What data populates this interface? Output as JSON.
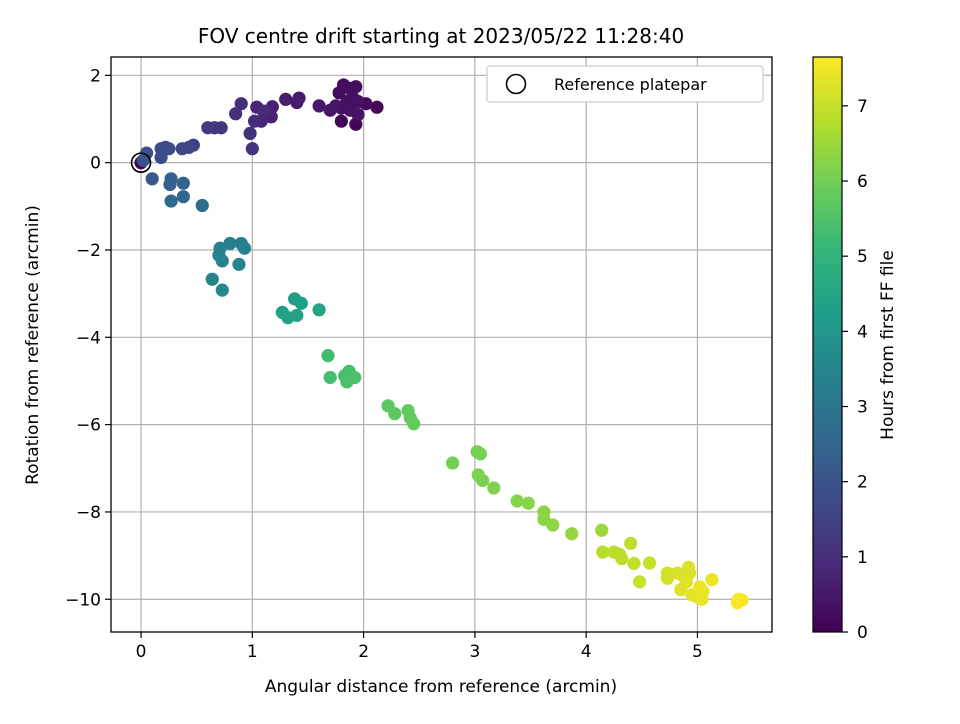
{
  "chart_data": {
    "type": "scatter",
    "title": "FOV centre drift starting at 2023/05/22 11:28:40",
    "xlabel": "Angular distance from reference (arcmin)",
    "ylabel": "Rotation from reference (arcmin)",
    "xlim": [
      -0.27,
      5.67
    ],
    "ylim": [
      -10.75,
      2.42
    ],
    "xticks": [
      0,
      1,
      2,
      3,
      4,
      5
    ],
    "yticks": [
      2,
      0,
      -2,
      -4,
      -6,
      -8,
      -10
    ],
    "grid": true,
    "legend": {
      "placement": "top-right",
      "entries": [
        {
          "label": "Reference platepar",
          "marker": "open-circle"
        }
      ]
    },
    "reference_point": {
      "x": 0,
      "y": 0
    },
    "colorbar": {
      "label": "Hours from first FF file",
      "colormap": "viridis",
      "range": [
        0,
        7.65
      ],
      "ticks": [
        0,
        1,
        2,
        3,
        4,
        5,
        6,
        7
      ]
    },
    "points": [
      {
        "x": 0.0,
        "y": 0.0,
        "c": 0.0
      },
      {
        "x": 1.93,
        "y": 0.88,
        "c": 0.1
      },
      {
        "x": 1.8,
        "y": 0.95,
        "c": 0.1
      },
      {
        "x": 2.12,
        "y": 1.27,
        "c": 0.15
      },
      {
        "x": 2.02,
        "y": 1.35,
        "c": 0.2
      },
      {
        "x": 1.78,
        "y": 1.6,
        "c": 0.2
      },
      {
        "x": 1.82,
        "y": 1.78,
        "c": 0.25
      },
      {
        "x": 1.88,
        "y": 1.7,
        "c": 0.25
      },
      {
        "x": 1.93,
        "y": 1.74,
        "c": 0.3
      },
      {
        "x": 1.9,
        "y": 1.5,
        "c": 0.3
      },
      {
        "x": 1.85,
        "y": 1.4,
        "c": 0.3
      },
      {
        "x": 1.95,
        "y": 1.4,
        "c": 0.35
      },
      {
        "x": 1.8,
        "y": 1.25,
        "c": 0.35
      },
      {
        "x": 1.88,
        "y": 1.2,
        "c": 0.35
      },
      {
        "x": 1.95,
        "y": 1.1,
        "c": 0.4
      },
      {
        "x": 1.75,
        "y": 1.3,
        "c": 0.4
      },
      {
        "x": 1.7,
        "y": 1.2,
        "c": 0.45
      },
      {
        "x": 1.6,
        "y": 1.3,
        "c": 0.5
      },
      {
        "x": 1.4,
        "y": 1.38,
        "c": 0.55
      },
      {
        "x": 1.42,
        "y": 1.48,
        "c": 0.6
      },
      {
        "x": 1.3,
        "y": 1.45,
        "c": 0.6
      },
      {
        "x": 1.18,
        "y": 1.28,
        "c": 0.7
      },
      {
        "x": 1.17,
        "y": 1.05,
        "c": 0.75
      },
      {
        "x": 1.08,
        "y": 0.95,
        "c": 0.8
      },
      {
        "x": 1.04,
        "y": 1.27,
        "c": 0.8
      },
      {
        "x": 1.02,
        "y": 0.95,
        "c": 0.9
      },
      {
        "x": 1.1,
        "y": 1.18,
        "c": 0.9
      },
      {
        "x": 0.9,
        "y": 1.35,
        "c": 1.0
      },
      {
        "x": 0.85,
        "y": 1.12,
        "c": 1.05
      },
      {
        "x": 0.98,
        "y": 0.67,
        "c": 1.1
      },
      {
        "x": 1.0,
        "y": 0.32,
        "c": 1.15
      },
      {
        "x": 0.72,
        "y": 0.8,
        "c": 1.25
      },
      {
        "x": 0.66,
        "y": 0.8,
        "c": 1.3
      },
      {
        "x": 0.6,
        "y": 0.8,
        "c": 1.35
      },
      {
        "x": 0.47,
        "y": 0.4,
        "c": 1.5
      },
      {
        "x": 0.43,
        "y": 0.35,
        "c": 1.6
      },
      {
        "x": 0.37,
        "y": 0.32,
        "c": 1.65
      },
      {
        "x": 0.22,
        "y": 0.35,
        "c": 1.7
      },
      {
        "x": 0.18,
        "y": 0.32,
        "c": 1.75
      },
      {
        "x": 0.25,
        "y": 0.32,
        "c": 1.8
      },
      {
        "x": 0.18,
        "y": 0.12,
        "c": 1.85
      },
      {
        "x": 0.05,
        "y": 0.22,
        "c": 1.9
      },
      {
        "x": 0.02,
        "y": 0.05,
        "c": 1.95
      },
      {
        "x": 0.1,
        "y": -0.37,
        "c": 2.1
      },
      {
        "x": 0.27,
        "y": -0.37,
        "c": 2.3
      },
      {
        "x": 0.26,
        "y": -0.5,
        "c": 2.35
      },
      {
        "x": 0.38,
        "y": -0.47,
        "c": 2.4
      },
      {
        "x": 0.38,
        "y": -0.78,
        "c": 2.5
      },
      {
        "x": 0.27,
        "y": -0.88,
        "c": 2.55
      },
      {
        "x": 0.55,
        "y": -0.98,
        "c": 2.65
      },
      {
        "x": 0.8,
        "y": -1.85,
        "c": 3.3
      },
      {
        "x": 0.9,
        "y": -1.85,
        "c": 3.3
      },
      {
        "x": 0.93,
        "y": -1.96,
        "c": 3.35
      },
      {
        "x": 0.71,
        "y": -1.96,
        "c": 3.35
      },
      {
        "x": 0.7,
        "y": -2.12,
        "c": 3.4
      },
      {
        "x": 0.73,
        "y": -2.25,
        "c": 3.4
      },
      {
        "x": 0.88,
        "y": -2.33,
        "c": 3.45
      },
      {
        "x": 0.64,
        "y": -2.67,
        "c": 3.5
      },
      {
        "x": 0.73,
        "y": -2.92,
        "c": 3.55
      },
      {
        "x": 1.38,
        "y": -3.12,
        "c": 4.3
      },
      {
        "x": 1.44,
        "y": -3.22,
        "c": 4.3
      },
      {
        "x": 1.27,
        "y": -3.43,
        "c": 4.35
      },
      {
        "x": 1.32,
        "y": -3.55,
        "c": 4.35
      },
      {
        "x": 1.4,
        "y": -3.5,
        "c": 4.4
      },
      {
        "x": 1.6,
        "y": -3.37,
        "c": 4.45
      },
      {
        "x": 1.68,
        "y": -4.42,
        "c": 5.3
      },
      {
        "x": 1.7,
        "y": -4.92,
        "c": 5.35
      },
      {
        "x": 1.83,
        "y": -4.88,
        "c": 5.4
      },
      {
        "x": 1.87,
        "y": -4.78,
        "c": 5.4
      },
      {
        "x": 1.85,
        "y": -5.02,
        "c": 5.45
      },
      {
        "x": 1.92,
        "y": -4.92,
        "c": 5.45
      },
      {
        "x": 2.22,
        "y": -5.57,
        "c": 5.7
      },
      {
        "x": 2.28,
        "y": -5.75,
        "c": 5.7
      },
      {
        "x": 2.4,
        "y": -5.68,
        "c": 5.75
      },
      {
        "x": 2.42,
        "y": -5.85,
        "c": 5.75
      },
      {
        "x": 2.45,
        "y": -5.98,
        "c": 5.8
      },
      {
        "x": 2.8,
        "y": -6.88,
        "c": 6.0
      },
      {
        "x": 3.02,
        "y": -6.62,
        "c": 6.05
      },
      {
        "x": 3.05,
        "y": -6.67,
        "c": 6.05
      },
      {
        "x": 3.03,
        "y": -7.15,
        "c": 6.1
      },
      {
        "x": 3.07,
        "y": -7.28,
        "c": 6.1
      },
      {
        "x": 3.17,
        "y": -7.45,
        "c": 6.15
      },
      {
        "x": 3.38,
        "y": -7.75,
        "c": 6.2
      },
      {
        "x": 3.48,
        "y": -7.8,
        "c": 6.25
      },
      {
        "x": 3.62,
        "y": -8.0,
        "c": 6.3
      },
      {
        "x": 3.62,
        "y": -8.17,
        "c": 6.3
      },
      {
        "x": 3.7,
        "y": -8.3,
        "c": 6.35
      },
      {
        "x": 3.87,
        "y": -8.5,
        "c": 6.4
      },
      {
        "x": 4.14,
        "y": -8.42,
        "c": 6.5
      },
      {
        "x": 4.15,
        "y": -8.92,
        "c": 6.8
      },
      {
        "x": 4.25,
        "y": -8.92,
        "c": 6.85
      },
      {
        "x": 4.3,
        "y": -8.97,
        "c": 6.85
      },
      {
        "x": 4.32,
        "y": -9.07,
        "c": 6.9
      },
      {
        "x": 4.4,
        "y": -8.72,
        "c": 6.9
      },
      {
        "x": 4.43,
        "y": -9.18,
        "c": 6.95
      },
      {
        "x": 4.57,
        "y": -9.17,
        "c": 7.0
      },
      {
        "x": 4.48,
        "y": -9.6,
        "c": 7.0
      },
      {
        "x": 4.73,
        "y": -9.4,
        "c": 7.15
      },
      {
        "x": 4.73,
        "y": -9.52,
        "c": 7.15
      },
      {
        "x": 4.82,
        "y": -9.4,
        "c": 7.2
      },
      {
        "x": 4.88,
        "y": -9.48,
        "c": 7.2
      },
      {
        "x": 4.92,
        "y": -9.27,
        "c": 7.25
      },
      {
        "x": 4.93,
        "y": -9.4,
        "c": 7.25
      },
      {
        "x": 4.9,
        "y": -9.6,
        "c": 7.3
      },
      {
        "x": 4.85,
        "y": -9.78,
        "c": 7.3
      },
      {
        "x": 4.95,
        "y": -9.9,
        "c": 7.35
      },
      {
        "x": 5.0,
        "y": -9.95,
        "c": 7.35
      },
      {
        "x": 5.04,
        "y": -10.0,
        "c": 7.4
      },
      {
        "x": 5.05,
        "y": -9.82,
        "c": 7.4
      },
      {
        "x": 5.02,
        "y": -9.72,
        "c": 7.45
      },
      {
        "x": 5.13,
        "y": -9.55,
        "c": 7.45
      },
      {
        "x": 5.37,
        "y": -10.0,
        "c": 7.55
      },
      {
        "x": 5.4,
        "y": -10.02,
        "c": 7.6
      },
      {
        "x": 5.36,
        "y": -10.08,
        "c": 7.6
      }
    ]
  }
}
